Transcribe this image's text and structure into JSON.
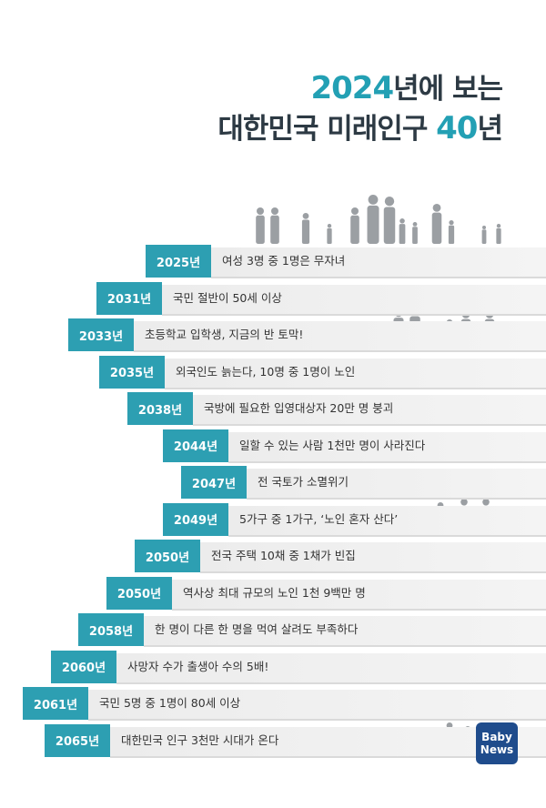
{
  "header": {
    "title_line1": [
      {
        "text": "2024",
        "accent": true
      },
      {
        "text": "년에 보는",
        "accent": false
      }
    ],
    "title_line2": [
      {
        "text": "대한민국 미래인구 ",
        "accent": false
      },
      {
        "text": "40",
        "accent": true
      },
      {
        "text": "년",
        "accent": false
      }
    ]
  },
  "rows": [
    {
      "year": "2025년",
      "text": "여성 3명 중 1명은 무자녀"
    },
    {
      "year": "2031년",
      "text": "국민 절반이 50세 이상"
    },
    {
      "year": "2033년",
      "text": "초등학교 입학생, 지금의 반 토막!"
    },
    {
      "year": "2035년",
      "text": "외국인도 늙는다, 10명 중 1명이 노인"
    },
    {
      "year": "2038년",
      "text": "국방에 필요한 입영대상자 20만 명 붕괴"
    },
    {
      "year": "2044년",
      "text": "일할 수 있는 사람 1천만 명이 사라진다"
    },
    {
      "year": "2047년",
      "text": "전 국토가 소멸위기"
    },
    {
      "year": "2049년",
      "text": "5가구 중 1가구, ‘노인 혼자 산다’"
    },
    {
      "year": "2050년",
      "text": "전국 주택 10채 중 1채가 빈집"
    },
    {
      "year": "2050년",
      "text": "역사상 최대 규모의 노인 1천 9백만 명"
    },
    {
      "year": "2058년",
      "text": "한 명이 다른 한 명을 먹여 살려도 부족하다"
    },
    {
      "year": "2060년",
      "text": "사망자 수가 출생아 수의 5배!"
    },
    {
      "year": "2061년",
      "text": "국민 5명 중 1명이 80세 이상"
    },
    {
      "year": "2065년",
      "text": "대한민국 인구 3천만 시대가 온다"
    }
  ],
  "logo": {
    "line1": "Baby",
    "line2": "News"
  }
}
